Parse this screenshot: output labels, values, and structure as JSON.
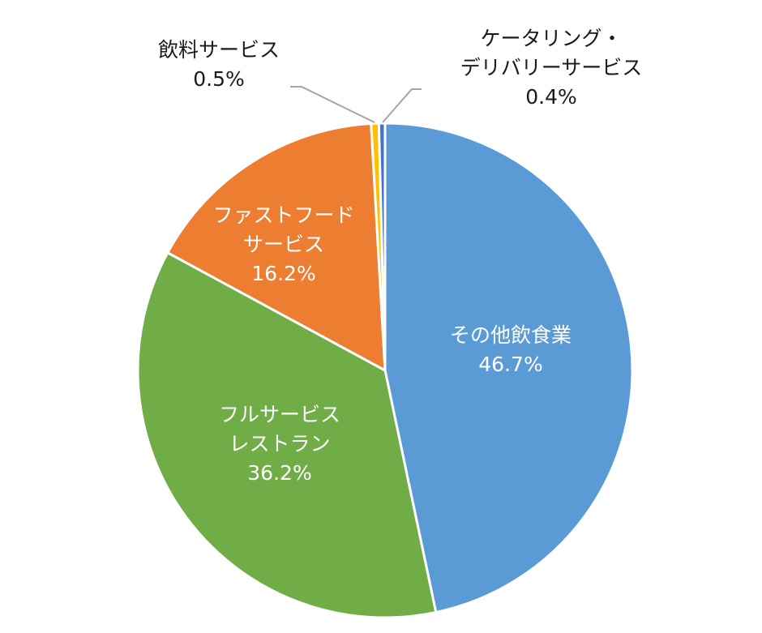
{
  "chart_data": {
    "type": "pie",
    "title": "",
    "categories": [
      "その他飲食業",
      "フルサービスレストラン",
      "ファストフードサービス",
      "飲料サービス",
      "ケータリング・デリバリーサービス"
    ],
    "values": [
      46.7,
      36.2,
      16.2,
      0.5,
      0.4
    ],
    "unit": "%",
    "start_angle_deg": 0,
    "direction": "clockwise",
    "legend": "none",
    "colors": [
      "#5b9bd5",
      "#70ad47",
      "#ed7d31",
      "#ffc000",
      "#4472c4"
    ],
    "labels": [
      {
        "lines": [
          "その他飲食業"
        ],
        "value": "46.7%"
      },
      {
        "lines": [
          "フルサービス",
          "レストラン"
        ],
        "value": "36.2%"
      },
      {
        "lines": [
          "ファストフード",
          "サービス"
        ],
        "value": "16.2%"
      },
      {
        "lines": [
          "飲料サービス"
        ],
        "value": "0.5%"
      },
      {
        "lines": [
          "ケータリング・",
          "デリバリーサービス"
        ],
        "value": "0.4%"
      }
    ]
  },
  "labels": {
    "other": {
      "line1": "その他飲食業",
      "value": "46.7%"
    },
    "fullservice": {
      "line1": "フルサービス",
      "line2": "レストラン",
      "value": "36.2%"
    },
    "fastfood": {
      "line1": "ファストフード",
      "line2": "サービス",
      "value": "16.2%"
    },
    "beverage": {
      "line1": "飲料サービス",
      "value": "0.5%"
    },
    "catering": {
      "line1": "ケータリング・",
      "line2": "デリバリーサービス",
      "value": "0.4%"
    }
  }
}
